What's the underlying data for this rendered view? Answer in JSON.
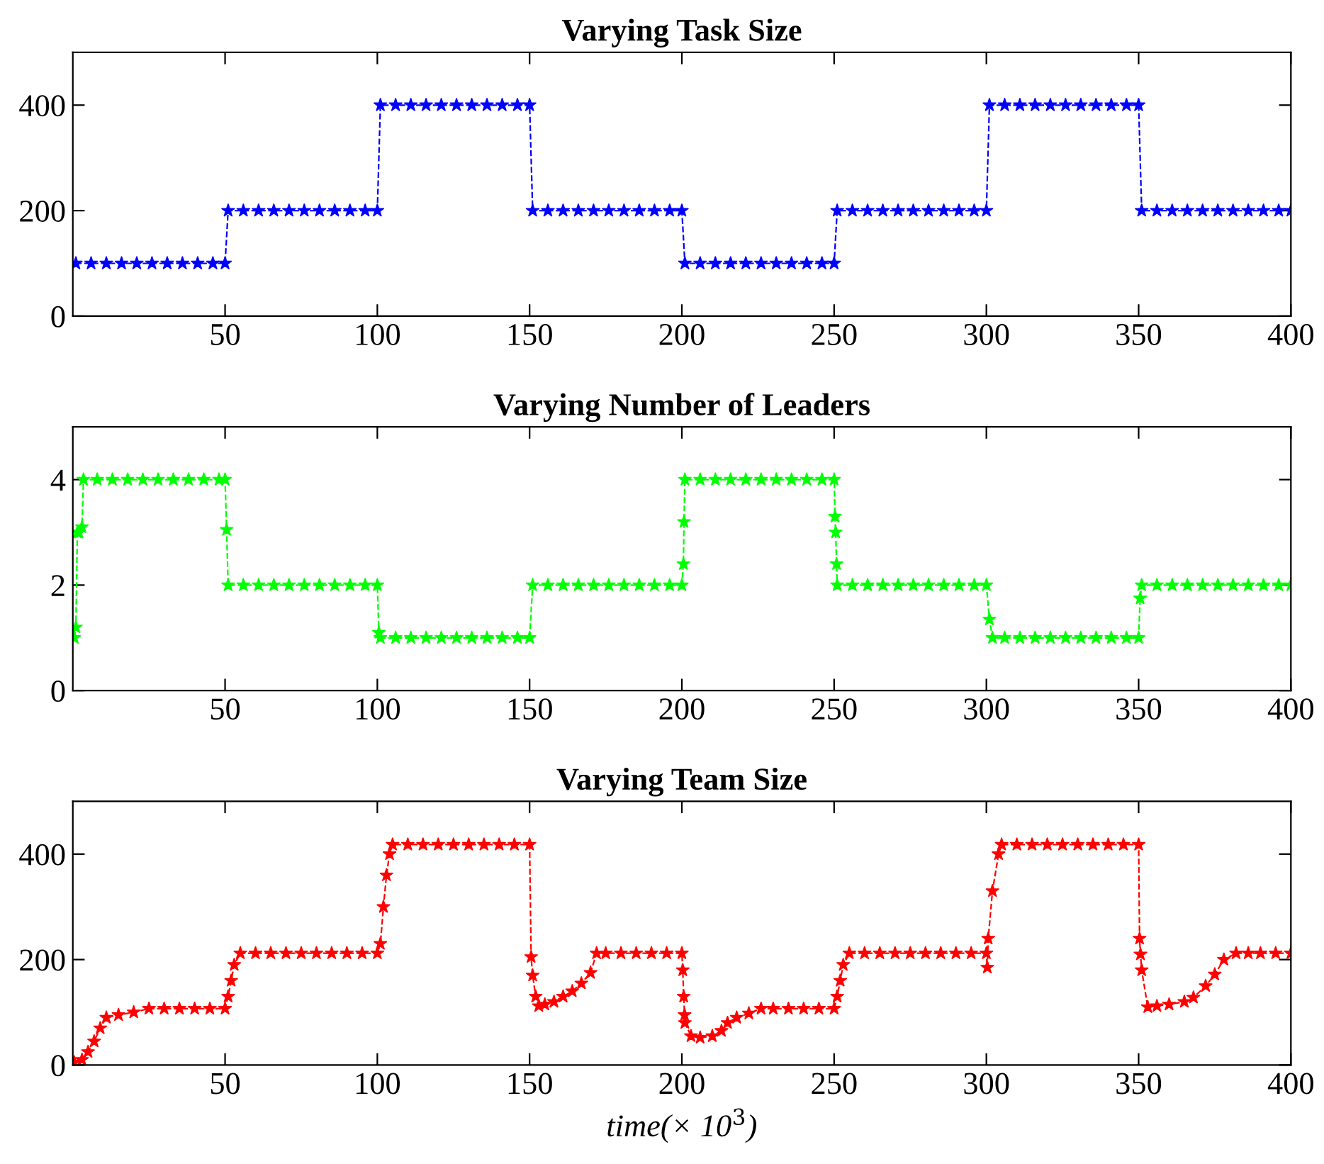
{
  "chart_data": [
    {
      "type": "line",
      "title": "Varying Task Size",
      "xlim": [
        0,
        400
      ],
      "xticks": [
        50,
        100,
        150,
        200,
        250,
        300,
        350,
        400
      ],
      "ylim": [
        0,
        500
      ],
      "yticks": [
        0,
        200,
        400
      ],
      "marker": "star",
      "line_style": "dashed",
      "grid": false,
      "series": [
        {
          "color": "#0000ff",
          "x": [
            1,
            6,
            11,
            16,
            21,
            26,
            31,
            36,
            41,
            46,
            50,
            51,
            56,
            61,
            66,
            71,
            76,
            81,
            86,
            91,
            96,
            100,
            101,
            106,
            111,
            116,
            121,
            126,
            131,
            136,
            141,
            146,
            150,
            151,
            156,
            161,
            166,
            171,
            176,
            181,
            186,
            191,
            196,
            200,
            201,
            206,
            211,
            216,
            221,
            226,
            231,
            236,
            241,
            246,
            250,
            251,
            256,
            261,
            266,
            271,
            276,
            281,
            286,
            291,
            296,
            300,
            301,
            306,
            311,
            316,
            321,
            326,
            331,
            336,
            341,
            346,
            350,
            351,
            356,
            361,
            366,
            371,
            376,
            381,
            386,
            391,
            396,
            400
          ],
          "values": [
            100,
            100,
            100,
            100,
            100,
            100,
            100,
            100,
            100,
            100,
            100,
            200,
            200,
            200,
            200,
            200,
            200,
            200,
            200,
            200,
            200,
            200,
            400,
            400,
            400,
            400,
            400,
            400,
            400,
            400,
            400,
            400,
            400,
            200,
            200,
            200,
            200,
            200,
            200,
            200,
            200,
            200,
            200,
            200,
            100,
            100,
            100,
            100,
            100,
            100,
            100,
            100,
            100,
            100,
            100,
            200,
            200,
            200,
            200,
            200,
            200,
            200,
            200,
            200,
            200,
            200,
            400,
            400,
            400,
            400,
            400,
            400,
            400,
            400,
            400,
            400,
            400,
            200,
            200,
            200,
            200,
            200,
            200,
            200,
            200,
            200,
            200,
            200
          ]
        }
      ]
    },
    {
      "type": "line",
      "title": "Varying Number of Leaders",
      "xlim": [
        0,
        400
      ],
      "xticks": [
        50,
        100,
        150,
        200,
        250,
        300,
        350,
        400
      ],
      "ylim": [
        0,
        5
      ],
      "yticks": [
        0,
        2,
        4
      ],
      "marker": "star",
      "line_style": "dashed",
      "grid": false,
      "series": [
        {
          "color": "#00ff00",
          "x": [
            0.5,
            1,
            1.5,
            2,
            3,
            3.5,
            8,
            13,
            18,
            23,
            28,
            33,
            38,
            43,
            48,
            50,
            50.5,
            51,
            56,
            61,
            66,
            71,
            76,
            81,
            86,
            91,
            96,
            100,
            100.5,
            101,
            106,
            111,
            116,
            121,
            126,
            131,
            136,
            141,
            146,
            150,
            151,
            156,
            161,
            166,
            171,
            176,
            181,
            186,
            191,
            196,
            200,
            200.5,
            200.7,
            201,
            206,
            211,
            216,
            221,
            226,
            231,
            236,
            241,
            246,
            250,
            250.3,
            250.5,
            250.8,
            251,
            256,
            261,
            266,
            271,
            276,
            281,
            286,
            291,
            296,
            300,
            301,
            302,
            306,
            311,
            316,
            321,
            326,
            331,
            336,
            341,
            346,
            350,
            350.5,
            351,
            356,
            361,
            366,
            371,
            376,
            381,
            386,
            391,
            396,
            400
          ],
          "values": [
            1,
            1.2,
            3,
            3,
            3.1,
            4,
            4,
            4,
            4,
            4,
            4,
            4,
            4,
            4,
            4,
            4,
            3.05,
            2,
            2,
            2,
            2,
            2,
            2,
            2,
            2,
            2,
            2,
            2,
            1.1,
            1,
            1,
            1,
            1,
            1,
            1,
            1,
            1,
            1,
            1,
            1,
            2,
            2,
            2,
            2,
            2,
            2,
            2,
            2,
            2,
            2,
            2,
            2.4,
            3.2,
            4,
            4,
            4,
            4,
            4,
            4,
            4,
            4,
            4,
            4,
            4,
            3.3,
            3,
            2.4,
            2,
            2,
            2,
            2,
            2,
            2,
            2,
            2,
            2,
            2,
            2,
            1.35,
            1,
            1,
            1,
            1,
            1,
            1,
            1,
            1,
            1,
            1,
            1,
            1.75,
            2,
            2,
            2,
            2,
            2,
            2,
            2,
            2,
            2,
            2,
            2
          ]
        }
      ]
    },
    {
      "type": "line",
      "title": "Varying Team Size",
      "xlabel": "time(× 10$^{3}$)",
      "xlim": [
        0,
        400
      ],
      "xticks": [
        50,
        100,
        150,
        200,
        250,
        300,
        350,
        400
      ],
      "ylim": [
        0,
        500
      ],
      "yticks": [
        0,
        200,
        400
      ],
      "marker": "star",
      "line_style": "dashed",
      "grid": false,
      "series": [
        {
          "color": "#ff0000",
          "x": [
            0.5,
            3,
            5,
            7,
            9,
            11,
            15,
            20,
            25,
            30,
            35,
            40,
            45,
            50,
            51,
            52,
            53,
            55,
            60,
            65,
            70,
            75,
            80,
            85,
            90,
            95,
            100,
            101,
            102,
            103,
            104,
            105,
            110,
            115,
            120,
            125,
            130,
            135,
            140,
            145,
            150,
            150.5,
            151,
            152,
            153,
            155,
            158,
            161,
            164,
            167,
            170,
            172,
            175,
            180,
            185,
            190,
            195,
            200,
            200.3,
            200.6,
            200.9,
            201,
            203,
            206,
            210,
            213,
            215,
            218,
            222,
            226,
            230,
            235,
            240,
            245,
            250,
            251,
            252,
            253,
            255,
            260,
            265,
            270,
            275,
            280,
            285,
            290,
            295,
            300,
            300.3,
            300.6,
            302,
            304,
            305,
            310,
            315,
            320,
            325,
            330,
            335,
            340,
            345,
            350,
            350.3,
            350.6,
            351,
            353,
            356,
            360,
            365,
            368,
            372,
            375,
            378,
            382,
            386,
            390,
            395,
            400
          ],
          "values": [
            5,
            10,
            25,
            45,
            70,
            90,
            95,
            100,
            107,
            107,
            107,
            107,
            107,
            107,
            130,
            160,
            190,
            212,
            212,
            212,
            212,
            212,
            212,
            212,
            212,
            212,
            212,
            230,
            300,
            360,
            400,
            418,
            418,
            418,
            418,
            418,
            418,
            418,
            418,
            418,
            418,
            205,
            170,
            130,
            112,
            115,
            120,
            130,
            140,
            155,
            175,
            212,
            212,
            212,
            212,
            212,
            212,
            212,
            180,
            130,
            95,
            80,
            55,
            52,
            55,
            65,
            80,
            90,
            98,
            107,
            107,
            107,
            107,
            107,
            107,
            130,
            160,
            190,
            212,
            212,
            212,
            212,
            212,
            212,
            212,
            212,
            212,
            212,
            185,
            240,
            330,
            400,
            418,
            418,
            418,
            418,
            418,
            418,
            418,
            418,
            418,
            418,
            240,
            210,
            180,
            110,
            112,
            115,
            120,
            128,
            150,
            172,
            200,
            212,
            212,
            212,
            212,
            212
          ]
        }
      ]
    }
  ]
}
